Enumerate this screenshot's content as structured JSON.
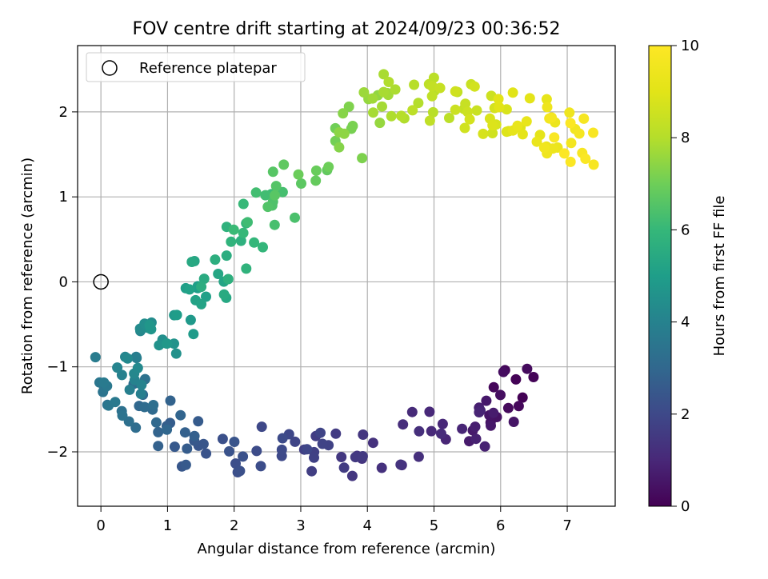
{
  "chart_data": {
    "type": "scatter",
    "title": "FOV centre drift starting at 2024/09/23 00:36:52",
    "xlabel": "Angular distance from reference (arcmin)",
    "ylabel": "Rotation from reference (arcmin)",
    "xlim": [
      -0.35,
      7.72
    ],
    "ylim": [
      -2.64,
      2.78
    ],
    "x_ticks": [
      0,
      1,
      2,
      3,
      4,
      5,
      6,
      7
    ],
    "y_ticks": [
      -2,
      -1,
      0,
      1,
      2
    ],
    "x_tick_labels": [
      "0",
      "1",
      "2",
      "3",
      "4",
      "5",
      "6",
      "7"
    ],
    "y_tick_labels": [
      "−2",
      "−1",
      "0",
      "1",
      "2"
    ],
    "grid": true,
    "legend": {
      "placement": "top-left",
      "entries": [
        "Reference platepar"
      ]
    },
    "reference_point": {
      "x": 0,
      "y": 0,
      "label": "Reference platepar"
    },
    "colorbar": {
      "label": "Hours from first FF file",
      "range": [
        0,
        10
      ],
      "ticks": [
        0,
        2,
        4,
        6,
        8,
        10
      ],
      "tick_labels": [
        "0",
        "2",
        "4",
        "6",
        "8",
        "10"
      ],
      "colormap": "viridis"
    },
    "segments": [
      {
        "x0": 6.3,
        "y0": -1.12,
        "x1": 5.7,
        "y1": -1.7,
        "h0": 0.0,
        "h1": 0.8,
        "n": 22
      },
      {
        "x0": 5.7,
        "y0": -1.7,
        "x1": 3.6,
        "y1": -2.05,
        "h0": 0.8,
        "h1": 1.6,
        "n": 26
      },
      {
        "x0": 3.6,
        "y0": -2.05,
        "x1": 1.4,
        "y1": -1.9,
        "h0": 1.6,
        "h1": 2.5,
        "n": 30
      },
      {
        "x0": 1.4,
        "y0": -1.9,
        "x1": 0.1,
        "y1": -1.2,
        "h0": 2.5,
        "h1": 3.6,
        "n": 30
      },
      {
        "x0": 0.1,
        "y0": -1.2,
        "x1": 1.3,
        "y1": -0.3,
        "h0": 3.6,
        "h1": 5.0,
        "n": 34
      },
      {
        "x0": 1.3,
        "y0": -0.3,
        "x1": 2.6,
        "y1": 1.0,
        "h0": 5.0,
        "h1": 6.4,
        "n": 34
      },
      {
        "x0": 2.6,
        "y0": 1.0,
        "x1": 4.2,
        "y1": 2.2,
        "h0": 6.4,
        "h1": 7.7,
        "n": 28
      },
      {
        "x0": 4.2,
        "y0": 2.2,
        "x1": 6.0,
        "y1": 2.0,
        "h0": 7.7,
        "h1": 8.8,
        "n": 40
      },
      {
        "x0": 6.0,
        "y0": 2.0,
        "x1": 7.3,
        "y1": 1.6,
        "h0": 8.8,
        "h1": 10.0,
        "n": 38
      }
    ],
    "scatter_spread": {
      "x": 0.33,
      "y": 0.3
    }
  }
}
